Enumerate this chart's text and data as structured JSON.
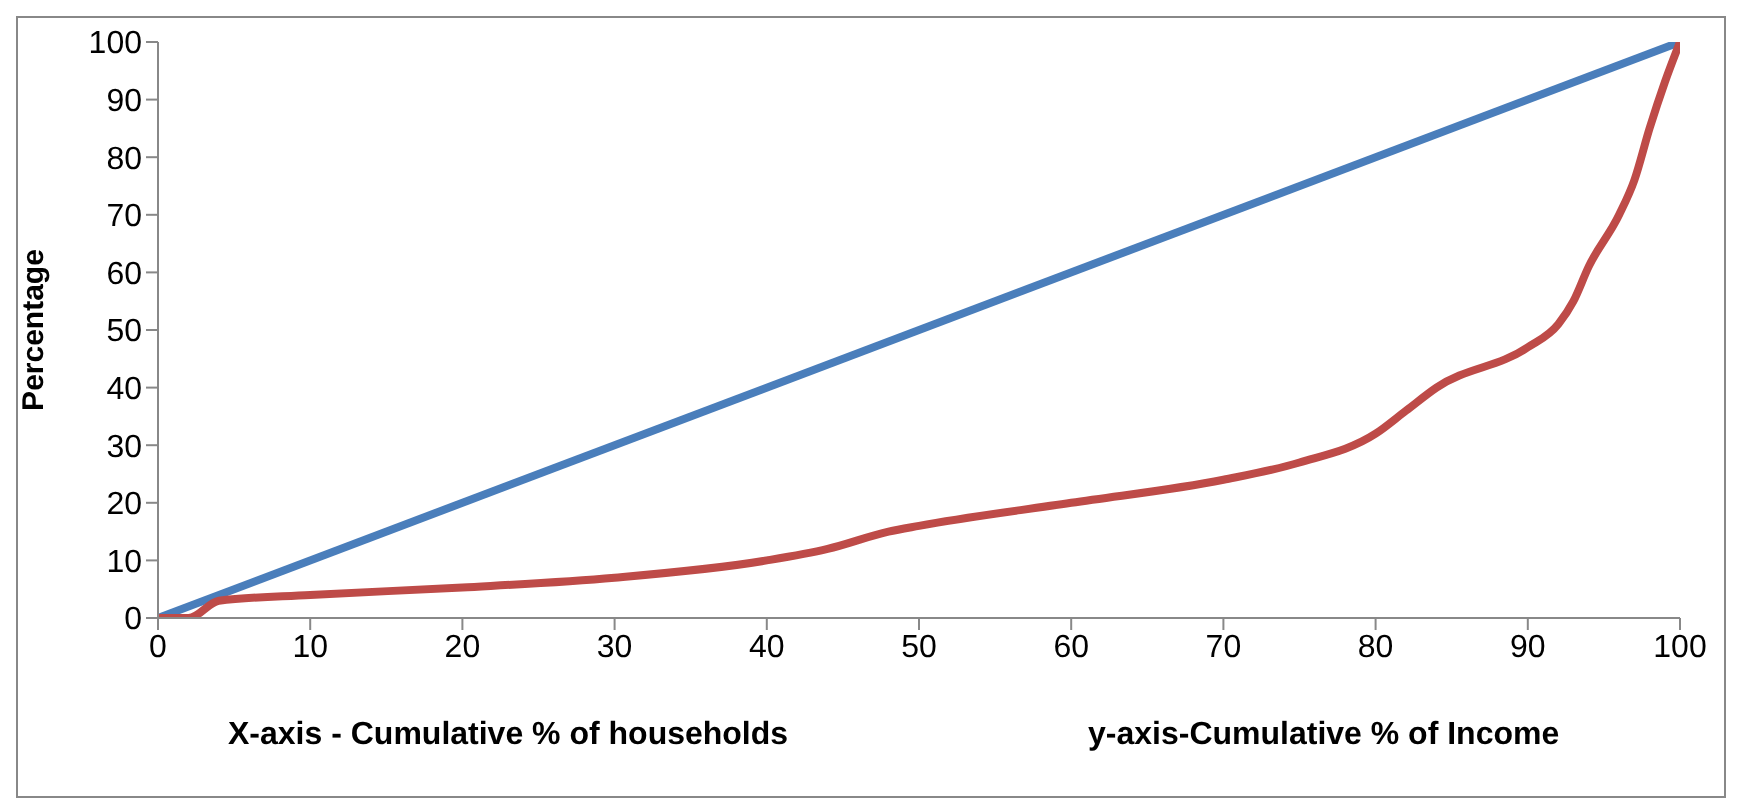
{
  "chart_data": {
    "type": "line",
    "ylabel": "Percentage",
    "xlabel": "X-axis - Cumulative % of households",
    "annotations": [
      "y-axis-Cumulative % of Income"
    ],
    "xlim": [
      0,
      100
    ],
    "xticks": [
      0,
      10,
      20,
      30,
      40,
      50,
      60,
      70,
      80,
      90,
      100
    ],
    "ylim": [
      0,
      100
    ],
    "yticks": [
      0,
      10,
      20,
      30,
      40,
      50,
      60,
      70,
      80,
      90,
      100
    ],
    "grid": false,
    "legend": false,
    "marker": "none",
    "line_style": "solid",
    "series": [
      {
        "color": "#4a7ebb",
        "x": [
          0,
          100
        ],
        "values": [
          0,
          100
        ]
      },
      {
        "color": "#be4b48",
        "x": [
          0,
          2,
          4,
          10,
          20,
          30,
          40,
          44,
          48,
          50,
          60,
          70,
          75,
          80,
          82,
          84,
          90,
          92,
          93,
          94,
          96,
          97,
          98,
          99,
          100
        ],
        "values": [
          0,
          0,
          3,
          4,
          5.3,
          7,
          10,
          12,
          15,
          16,
          20,
          24,
          27,
          32,
          36,
          40,
          47,
          51,
          55,
          61,
          70,
          76,
          85,
          93,
          100
        ]
      }
    ]
  }
}
